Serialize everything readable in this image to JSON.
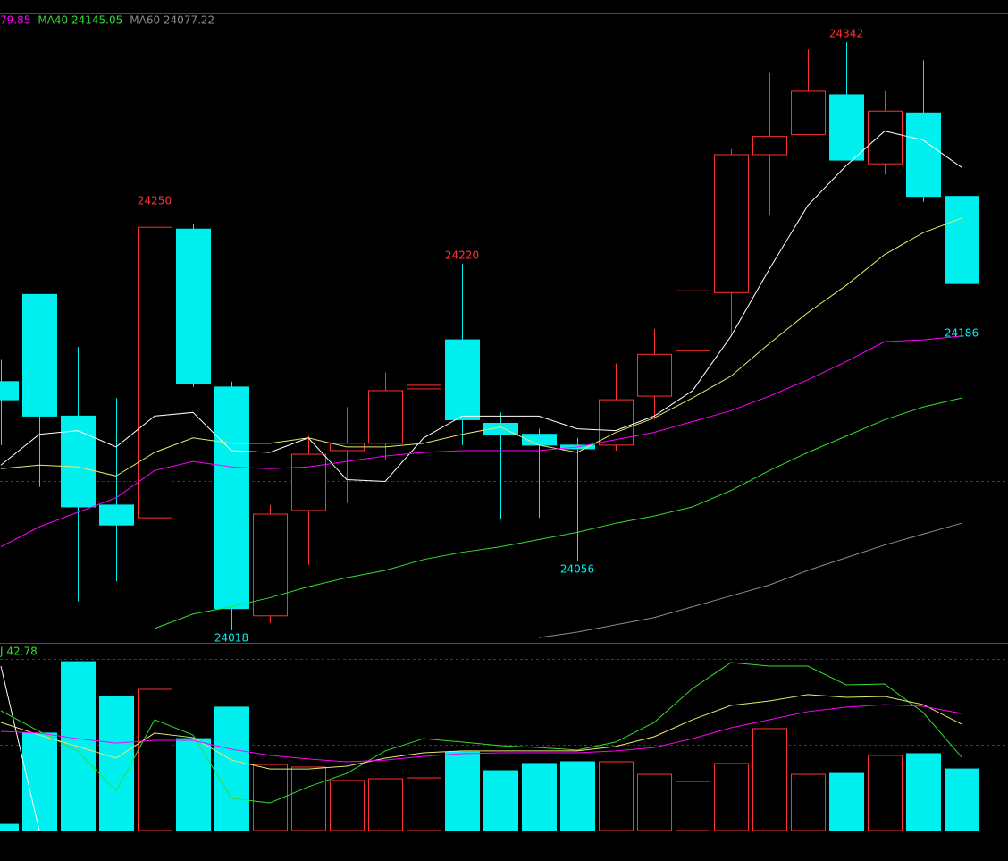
{
  "chart_data": [
    {
      "type": "candlestick",
      "legend": [
        {
          "text": "79.85",
          "color": "#ff00ff"
        },
        {
          "text": "MA40 24145.05",
          "color": "#33dd33"
        },
        {
          "text": "MA60 24077.22",
          "color": "#8c8c8c"
        }
      ],
      "open": [
        24155,
        24203,
        24136,
        24087,
        24080,
        24239,
        24152,
        24026,
        24084,
        24117,
        24121,
        24151,
        24178,
        24132,
        24126,
        24120,
        24120,
        24147,
        24172,
        24204,
        24280,
        24291,
        24313,
        24275,
        24303,
        24257
      ],
      "high": [
        24167,
        24203,
        24174,
        24146,
        24250,
        24242,
        24155,
        24087,
        24125,
        24141,
        24160,
        24196,
        24220,
        24138,
        24129,
        24124,
        24165,
        24184,
        24212,
        24283,
        24325,
        24338,
        24342,
        24315,
        24332,
        24268
      ],
      "low": [
        24120,
        24097,
        24034,
        24045,
        24062,
        24152,
        24018,
        24022,
        24054,
        24088,
        24112,
        24141,
        24120,
        24079,
        24080,
        24056,
        24117,
        24134,
        24162,
        24182,
        24247,
        24291,
        24277,
        24269,
        24254,
        24186
      ],
      "close": [
        24145,
        24136,
        24086,
        24076,
        24240,
        24154,
        24030,
        24082,
        24115,
        24121,
        24150,
        24153,
        24134,
        24126,
        24120,
        24118,
        24145,
        24170,
        24205,
        24280,
        24290,
        24315,
        24277,
        24304,
        24257,
        24209
      ],
      "up_color": "#ff3232",
      "down_color": "#00f0f0",
      "ylim": [
        24011.6,
        24357.8
      ],
      "grid_levels": [
        24100,
        24200
      ],
      "grid_color": "#a01010",
      "labeled_highs": [
        4,
        12,
        22
      ],
      "labeled_lows": [
        6,
        15,
        25
      ],
      "lines": [
        {
          "color": "#ffffff",
          "values": [
            24109,
            24126,
            24128,
            24119,
            24136,
            24138,
            24117,
            24116,
            24124,
            24101,
            24100,
            24124,
            24136,
            24136,
            24136,
            24129,
            24128,
            24136,
            24150,
            24180,
            24217,
            24252,
            24274,
            24293,
            24288,
            24273
          ]
        },
        {
          "color": "#e8e870",
          "values": [
            24107,
            24109,
            24108,
            24103,
            24116,
            24124,
            24121,
            24121,
            24124,
            24119,
            24119,
            24121,
            24126,
            24130,
            24120,
            24116,
            24127,
            24135,
            24146,
            24158,
            24176,
            24193,
            24208,
            24225,
            24237,
            24245
          ]
        },
        {
          "color": "#ff00ff",
          "values": [
            24064,
            24075,
            24083,
            24091,
            24106,
            24111,
            24108,
            24107,
            24108,
            24111,
            24114,
            24116,
            24117,
            24117,
            24117,
            24119,
            24123,
            24127,
            24133,
            24139,
            24147,
            24156,
            24166,
            24177,
            24178,
            24180
          ]
        },
        {
          "color": "#33dd33",
          "values": [
            null,
            null,
            null,
            null,
            24019,
            24027,
            24031,
            24036,
            24042,
            24047,
            24051,
            24057,
            24061,
            24064,
            24068,
            24072,
            24077,
            24081,
            24086,
            24095,
            24106,
            24116,
            24125,
            24134,
            24141,
            24146
          ]
        },
        {
          "color": "#8c8c8c",
          "values": [
            null,
            null,
            null,
            null,
            null,
            null,
            null,
            null,
            null,
            null,
            null,
            null,
            null,
            null,
            24014,
            24017,
            24021,
            24025,
            24031,
            24037,
            24043,
            24051,
            24058,
            24065,
            24071,
            24077
          ]
        }
      ]
    },
    {
      "type": "volume",
      "legend": [
        {
          "text": "J 42.78",
          "color": "#33dd33"
        }
      ],
      "volumes": [
        3.6,
        56.8,
        98.4,
        78.1,
        82.3,
        53.6,
        71.9,
        38.5,
        37,
        29.2,
        30.2,
        30.7,
        45.8,
        34.9,
        39.1,
        40.1,
        40.1,
        32.8,
        28.6,
        39.1,
        59.4,
        32.8,
        33.3,
        43.8,
        44.8,
        35.9
      ],
      "ylim": [
        0,
        108.85
      ],
      "grid_levels": [
        50,
        100
      ],
      "grid_color": "#a01010",
      "lines": [
        {
          "color": "#ffffff",
          "values": [
            95.8,
            0,
            null,
            null,
            null,
            null,
            null,
            null,
            null,
            null,
            null,
            null,
            null,
            null,
            null,
            null,
            null,
            null,
            null,
            null,
            null,
            null,
            null,
            null,
            null,
            null
          ]
        },
        {
          "color": "#33dd33",
          "values": [
            69.8,
            57.8,
            46.4,
            22.9,
            64.6,
            55.7,
            18.8,
            16.1,
            25.5,
            33.3,
            46.4,
            53.6,
            51.6,
            49.5,
            48.4,
            46.9,
            51.6,
            63,
            82.8,
            97.9,
            95.8,
            95.8,
            84.9,
            85.4,
            68.8,
            42.78
          ]
        },
        {
          "color": "#e8e870",
          "values": [
            63,
            55.7,
            49,
            42.2,
            56.8,
            54.2,
            41.1,
            35.9,
            35.9,
            37.5,
            42.2,
            45.3,
            46.4,
            46.4,
            46.4,
            46.4,
            49,
            54.7,
            64.6,
            72.9,
            75.5,
            79.2,
            77.6,
            78.1,
            73.4,
            62
          ]
        },
        {
          "color": "#ff00ff",
          "values": [
            57.8,
            56.8,
            53.6,
            51,
            52.6,
            52.6,
            47.4,
            43.8,
            41.7,
            40.1,
            41.1,
            43.2,
            44.8,
            45.3,
            45.3,
            45.3,
            46.4,
            48.4,
            53.6,
            59.9,
            64.6,
            69.3,
            71.9,
            73.4,
            72.4,
            68.2
          ]
        }
      ]
    }
  ]
}
